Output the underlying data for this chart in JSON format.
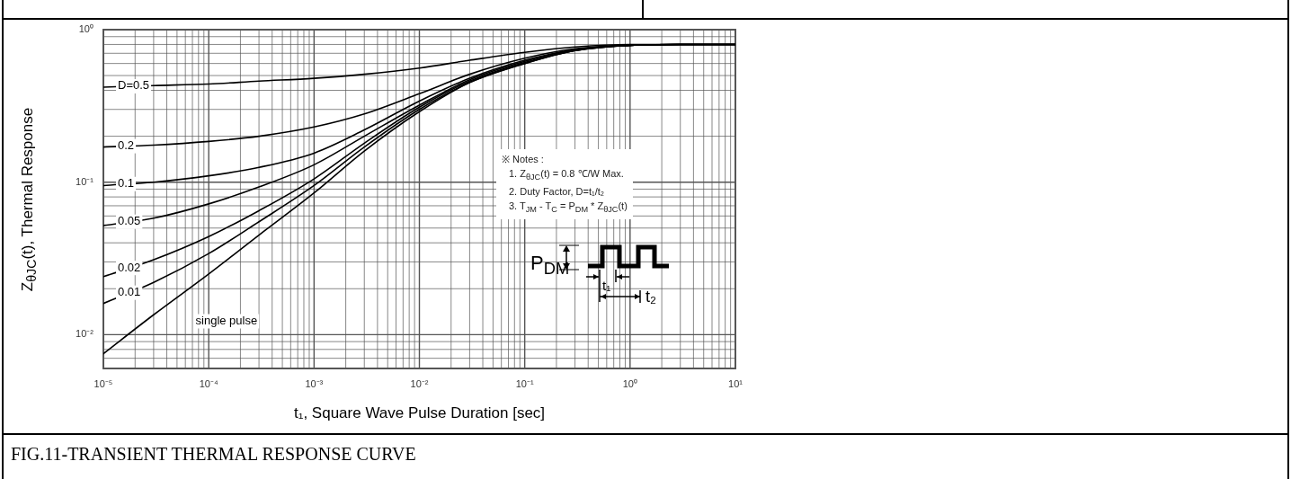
{
  "chart_data": {
    "type": "line",
    "xlabel": "t₁, Square Wave Pulse Duration [sec]",
    "ylabel": "Z$_{θJC}$(t), Thermal Response",
    "log": "xy",
    "grid": true,
    "legend": false,
    "marker": "none",
    "line_style": "solid",
    "x": [
      1e-05,
      3e-05,
      0.0001,
      0.0003,
      0.001,
      0.003,
      0.01,
      0.03,
      0.1,
      0.3,
      1,
      3,
      10
    ],
    "xlim": [
      1e-05,
      10
    ],
    "xticks": [
      {
        "value": 1e-05,
        "label": "10⁻⁵"
      },
      {
        "value": 0.0001,
        "label": "10⁻⁴"
      },
      {
        "value": 0.001,
        "label": "10⁻³"
      },
      {
        "value": 0.01,
        "label": "10⁻²"
      },
      {
        "value": 0.1,
        "label": "10⁻¹"
      },
      {
        "value": 1,
        "label": "10⁰"
      },
      {
        "value": 10,
        "label": "10¹"
      }
    ],
    "ylim": [
      0.006,
      1
    ],
    "yticks": [
      {
        "value": 0.01,
        "label": "10⁻²"
      },
      {
        "value": 0.1,
        "label": "10⁻¹"
      },
      {
        "value": 1,
        "label": "10⁰"
      }
    ],
    "series": [
      {
        "name": "D=0.5",
        "color": "#000000",
        "values": [
          0.42,
          0.43,
          0.44,
          0.46,
          0.48,
          0.51,
          0.56,
          0.63,
          0.71,
          0.77,
          0.8,
          0.8,
          0.8
        ]
      },
      {
        "name": "0.2",
        "color": "#000000",
        "values": [
          0.17,
          0.175,
          0.185,
          0.2,
          0.23,
          0.28,
          0.38,
          0.51,
          0.65,
          0.75,
          0.79,
          0.8,
          0.8
        ]
      },
      {
        "name": "0.1",
        "color": "#000000",
        "values": [
          0.095,
          0.1,
          0.11,
          0.125,
          0.155,
          0.22,
          0.34,
          0.48,
          0.63,
          0.74,
          0.79,
          0.8,
          0.8
        ]
      },
      {
        "name": "0.05",
        "color": "#000000",
        "values": [
          0.052,
          0.058,
          0.072,
          0.093,
          0.13,
          0.2,
          0.32,
          0.47,
          0.62,
          0.74,
          0.79,
          0.8,
          0.8
        ]
      },
      {
        "name": "0.02",
        "color": "#000000",
        "values": [
          0.024,
          0.031,
          0.044,
          0.065,
          0.105,
          0.18,
          0.31,
          0.46,
          0.61,
          0.73,
          0.79,
          0.8,
          0.8
        ]
      },
      {
        "name": "0.01",
        "color": "#000000",
        "values": [
          0.016,
          0.022,
          0.034,
          0.055,
          0.095,
          0.17,
          0.3,
          0.45,
          0.6,
          0.73,
          0.79,
          0.8,
          0.8
        ]
      },
      {
        "name": "single pulse",
        "color": "#000000",
        "values": [
          0.0075,
          0.0135,
          0.025,
          0.045,
          0.085,
          0.16,
          0.29,
          0.45,
          0.6,
          0.73,
          0.79,
          0.8,
          0.8
        ]
      }
    ],
    "annotations": [
      "※ Notes :",
      "1. Z$_{θJC}$(t) = 0.8 ℃/W Max.",
      "2. Duty Factor, D=t₁/t₂",
      "3. T$_{JM}$ - T$_{C}$ = P$_{DM}$ * Z$_{θJC}$(t)",
      "P$_{DM}$",
      "t₁",
      "t₂",
      "FIG.11-TRANSIENT THERMAL RESPONSE CURVE"
    ]
  }
}
